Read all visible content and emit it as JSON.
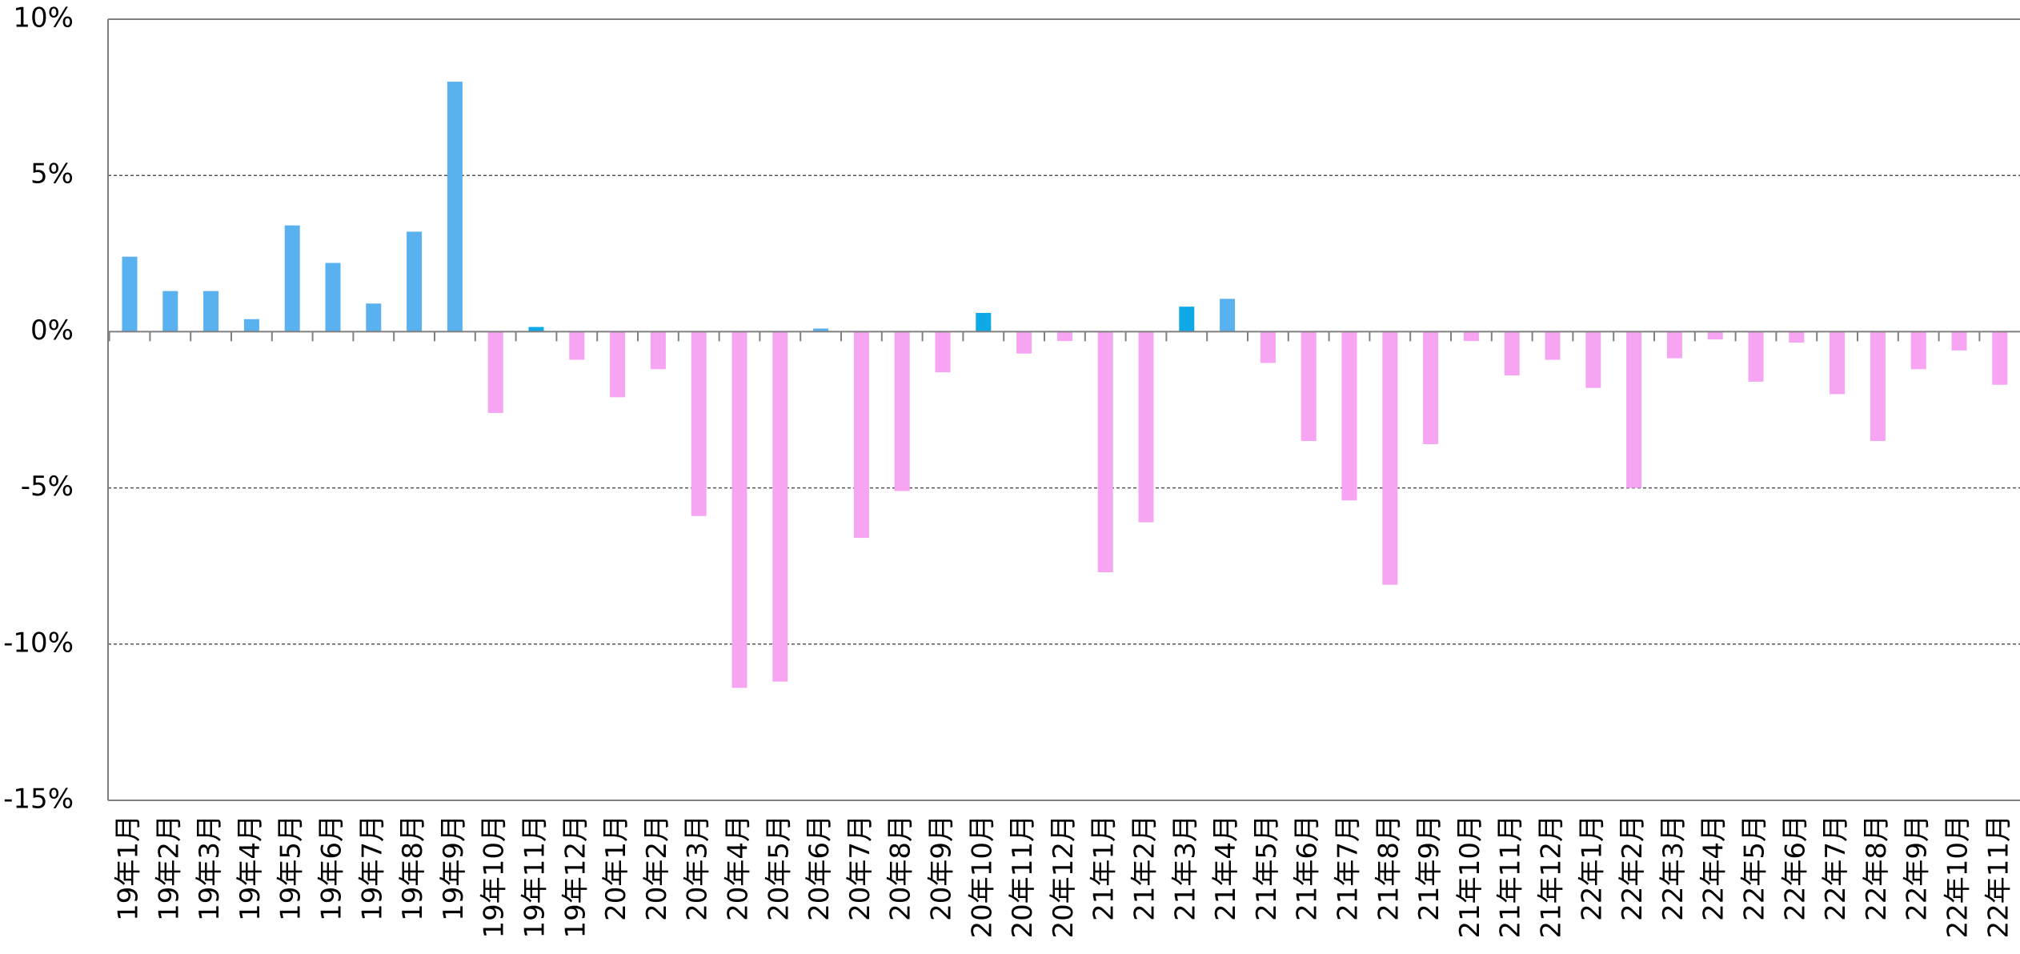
{
  "colors": {
    "positive": "#5ab1f0",
    "negative": "#f7a4f2",
    "highlight": "#10a9e8",
    "grid": "#555555",
    "axis": "#808080"
  },
  "chart_data": {
    "type": "bar",
    "title": "",
    "xlabel": "",
    "ylabel": "",
    "ylim": [
      -15,
      10
    ],
    "yticks": [
      10,
      5,
      0,
      -5,
      -10,
      -15
    ],
    "ytick_labels": [
      "10%",
      "5%",
      "0%",
      "-5%",
      "-10%",
      "-15%"
    ],
    "grid": "horizontal dashed at 5% steps",
    "legend": "none",
    "categories": [
      "19年1月",
      "19年2月",
      "19年3月",
      "19年4月",
      "19年5月",
      "19年6月",
      "19年7月",
      "19年8月",
      "19年9月",
      "19年10月",
      "19年11月",
      "19年12月",
      "20年1月",
      "20年2月",
      "20年3月",
      "20年4月",
      "20年5月",
      "20年6月",
      "20年7月",
      "20年8月",
      "20年9月",
      "20年10月",
      "20年11月",
      "20年12月",
      "21年1月",
      "21年2月",
      "21年3月",
      "21年4月",
      "21年5月",
      "21年6月",
      "21年7月",
      "21年8月",
      "21年9月",
      "21年10月",
      "21年11月",
      "21年12月",
      "22年1月",
      "22年2月",
      "22年3月",
      "22年4月",
      "22年5月",
      "22年6月",
      "22年7月",
      "22年8月",
      "22年9月",
      "22年10月",
      "22年11月"
    ],
    "values": [
      2.4,
      1.3,
      1.3,
      0.4,
      3.4,
      2.2,
      0.9,
      3.2,
      8.0,
      -2.6,
      0.15,
      -0.9,
      -2.1,
      -1.2,
      -5.9,
      -11.4,
      -11.2,
      0.1,
      -6.6,
      -5.1,
      -1.3,
      0.6,
      -0.7,
      -0.3,
      -7.7,
      -6.1,
      0.8,
      1.05,
      -1.0,
      -3.5,
      -5.4,
      -8.1,
      -3.6,
      -0.3,
      -1.4,
      -0.9,
      -1.8,
      -5.0,
      -0.85,
      -0.25,
      -1.6,
      -0.35,
      -2.0,
      -3.5,
      -1.2,
      -0.6,
      -1.7
    ],
    "highlighted_categories": [
      "19年11月",
      "20年10月",
      "21年3月"
    ]
  }
}
